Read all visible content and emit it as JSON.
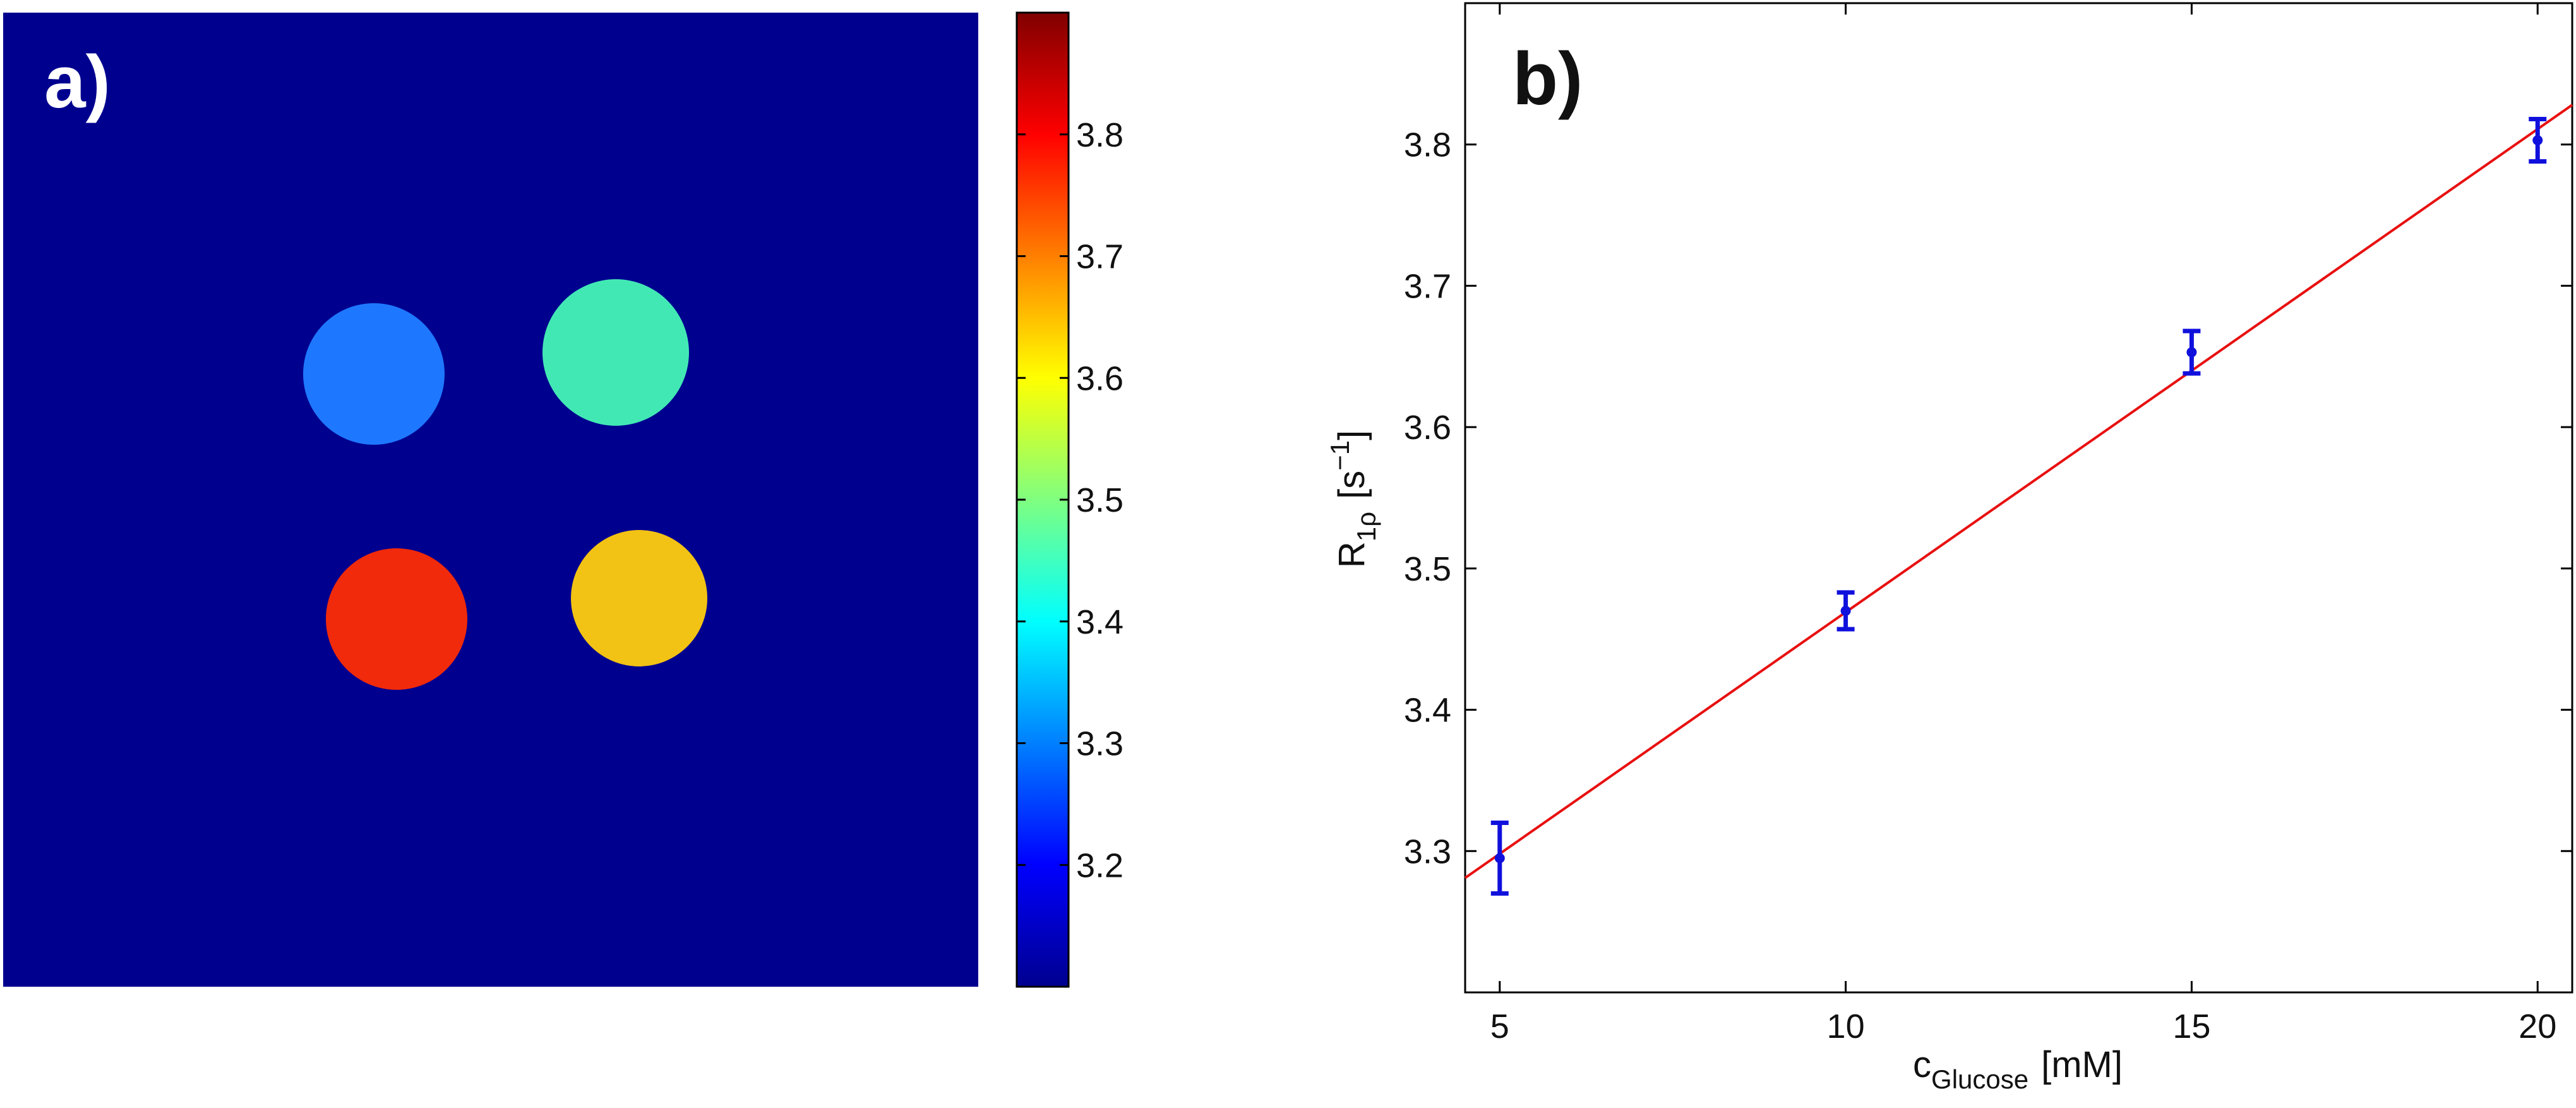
{
  "chart_data": [
    {
      "panel_label": "a)",
      "type": "heatmap",
      "background_color": "#00008F",
      "colormap": "jet",
      "samples": [
        {
          "value": 3.27,
          "color": "#1E78FF"
        },
        {
          "value": 3.42,
          "color": "#42E8B4"
        },
        {
          "value": 3.84,
          "color": "#F02A0A"
        },
        {
          "value": 3.64,
          "color": "#F2C214"
        }
      ],
      "colorbar": {
        "range": [
          3.1,
          3.9
        ],
        "ticks": [
          3.2,
          3.3,
          3.4,
          3.5,
          3.6,
          3.7,
          3.8
        ],
        "tick_labels": [
          "3.2",
          "3.3",
          "3.4",
          "3.5",
          "3.6",
          "3.7",
          "3.8"
        ]
      }
    },
    {
      "panel_label": "b)",
      "type": "scatter",
      "xlabel": "c",
      "xlabel_sub": "Glucose",
      "xlabel_unit": "[mM]",
      "ylabel": "R",
      "ylabel_sub": "1ρ",
      "ylabel_unit_open": "[s",
      "ylabel_unit_sup": "−1",
      "ylabel_unit_close": "]",
      "xlim": [
        4.5,
        20.5
      ],
      "ylim": [
        3.2,
        3.9
      ],
      "xticks": [
        5,
        10,
        15,
        20
      ],
      "xtick_labels": [
        "5",
        "10",
        "15",
        "20"
      ],
      "yticks": [
        3.3,
        3.4,
        3.5,
        3.6,
        3.7,
        3.8
      ],
      "ytick_labels": [
        "3.3",
        "3.4",
        "3.5",
        "3.6",
        "3.7",
        "3.8"
      ],
      "grid": false,
      "series": [
        {
          "color": "#1010DD",
          "x": [
            5,
            10,
            15,
            20
          ],
          "y": [
            3.295,
            3.47,
            3.653,
            3.803
          ],
          "err": [
            0.025,
            0.013,
            0.015,
            0.015
          ]
        }
      ],
      "fit_line": {
        "color": "#E81010",
        "x": [
          4.5,
          20.5
        ],
        "y": [
          3.281,
          3.828
        ]
      }
    }
  ]
}
